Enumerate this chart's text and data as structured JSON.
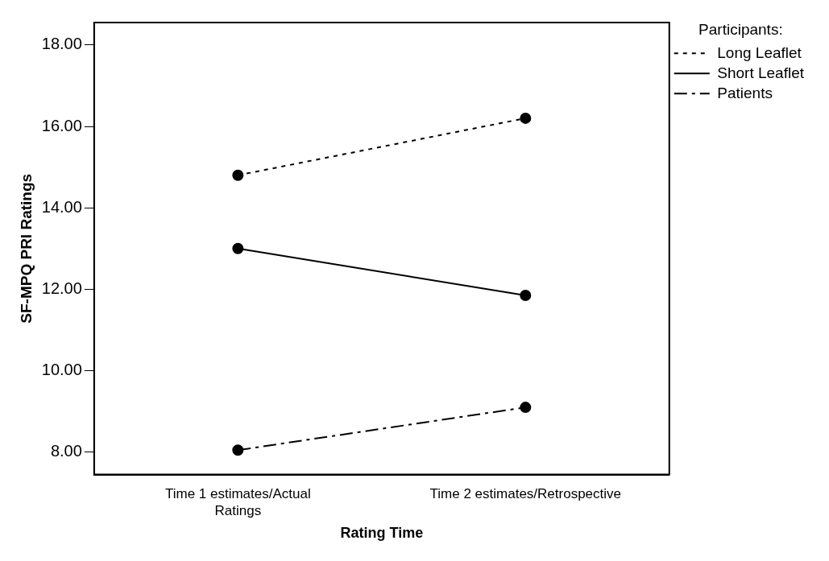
{
  "chart_data": {
    "type": "line",
    "xlabel": "Rating Time",
    "ylabel": "SF-MPQ PRI Ratings",
    "legend_title": "Participants:",
    "categories": [
      "Time 1 estimates/Actual Ratings",
      "Time 2 estimates/Retrospective"
    ],
    "series": [
      {
        "name": "Long Leaflet",
        "color": "#000000",
        "values": [
          14.8,
          16.2
        ],
        "line_style": "dotted"
      },
      {
        "name": "Short Leaflet",
        "color": "#000000",
        "values": [
          13.0,
          11.85
        ],
        "line_style": "solid"
      },
      {
        "name": "Patients",
        "color": "#000000",
        "values": [
          8.05,
          9.1
        ],
        "line_style": "dashed"
      }
    ],
    "ylim": [
      7.45,
      18.55
    ],
    "yticks": [
      {
        "value": 8,
        "label": "8.00"
      },
      {
        "value": 10,
        "label": "10.00"
      },
      {
        "value": 12,
        "label": "12.00"
      },
      {
        "value": 14,
        "label": "14.00"
      },
      {
        "value": 16,
        "label": "16.00"
      },
      {
        "value": 18,
        "label": "18.00"
      }
    ],
    "grid": false,
    "legend": "top right",
    "marker": "circle"
  }
}
